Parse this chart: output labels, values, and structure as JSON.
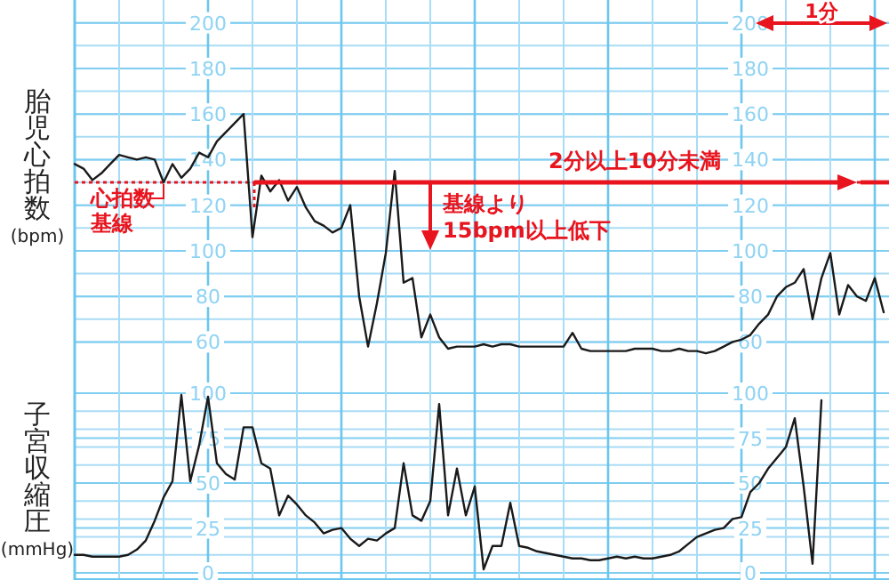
{
  "chart_data": [
    {
      "type": "line",
      "ylabel": "胎児心拍数(bpm)",
      "ylim": [
        50,
        210
      ],
      "yticks": [
        60,
        80,
        100,
        120,
        140,
        160,
        180,
        200
      ],
      "y2lim": [
        50,
        210
      ],
      "y2ticks": [
        60,
        80,
        100,
        120,
        140,
        160,
        180,
        200
      ],
      "grid": true,
      "tick_labels": "y",
      "categories": [
        null,
        null,
        null,
        null,
        null,
        null,
        null,
        null,
        null,
        null,
        null,
        null,
        null,
        null,
        null,
        null,
        null,
        null,
        null,
        null,
        null,
        null,
        null,
        null,
        null,
        null,
        null,
        null,
        null,
        null,
        null,
        null,
        null,
        null,
        null,
        null,
        null,
        null,
        null,
        null,
        null,
        null,
        null,
        null,
        null,
        null,
        null,
        null,
        null,
        null,
        null,
        null,
        null,
        null,
        null,
        null,
        null,
        null,
        null,
        null,
        null,
        null,
        null,
        null,
        null,
        null,
        null,
        null,
        null,
        null,
        null,
        null,
        null,
        null,
        null,
        null,
        null,
        null,
        null,
        null,
        null,
        null,
        null,
        null,
        null,
        null,
        null,
        null,
        null,
        null,
        null,
        null
      ],
      "series": [
        {
          "color": "#1a1a1a",
          "values": [
            138,
            136,
            131,
            134,
            138,
            142,
            141,
            140,
            141,
            140,
            130,
            138,
            132,
            136,
            143,
            141,
            148,
            152,
            156,
            160,
            106,
            133,
            126,
            131,
            122,
            128,
            119,
            113,
            111,
            108,
            110,
            120,
            80,
            58,
            77,
            99,
            135,
            86,
            88,
            62,
            72,
            62,
            57,
            58,
            58,
            58,
            59,
            58,
            59,
            59,
            58,
            58,
            58,
            58,
            58,
            58,
            64,
            57,
            56,
            56,
            56,
            56,
            56,
            57,
            57,
            57,
            56,
            56,
            57,
            56,
            56,
            55,
            56,
            58,
            60,
            61,
            63,
            68,
            72,
            80,
            84,
            86,
            92,
            70,
            88,
            99,
            72,
            85,
            80,
            78,
            88,
            73
          ]
        }
      ],
      "ref_lines": [
        {
          "axis": "y",
          "value": 130,
          "label": "心拍数基線",
          "color": "#e8141e",
          "line_style": "dotted"
        }
      ],
      "annotations": [
        "基線より15bpm以上低下",
        "2分以上10分未満",
        "1分"
      ]
    },
    {
      "type": "line",
      "ylabel": "子宮収縮圧(mmHg)",
      "ylim": [
        0,
        100
      ],
      "yticks": [
        0,
        25,
        50,
        75,
        100
      ],
      "y2lim": [
        0,
        100
      ],
      "y2ticks": [
        0,
        25,
        50,
        75,
        100
      ],
      "grid": true,
      "tick_labels": "y",
      "categories": [
        null,
        null,
        null,
        null,
        null,
        null,
        null,
        null,
        null,
        null,
        null,
        null,
        null,
        null,
        null,
        null,
        null,
        null,
        null,
        null,
        null,
        null,
        null,
        null,
        null,
        null,
        null,
        null,
        null,
        null,
        null,
        null,
        null,
        null,
        null,
        null,
        null,
        null,
        null,
        null,
        null,
        null,
        null,
        null,
        null,
        null,
        null,
        null,
        null,
        null,
        null,
        null,
        null,
        null,
        null,
        null,
        null,
        null,
        null,
        null,
        null,
        null,
        null,
        null,
        null,
        null,
        null,
        null,
        null,
        null,
        null,
        null,
        null,
        null,
        null,
        null,
        null,
        null,
        null,
        null,
        null,
        null,
        null,
        null,
        null,
        null,
        null,
        null,
        null,
        null,
        null,
        null
      ],
      "series": [
        {
          "color": "#1a1a1a",
          "values": [
            10,
            10,
            9,
            9,
            9,
            9,
            10,
            13,
            18,
            29,
            42,
            51,
            99,
            51,
            71,
            98,
            61,
            55,
            52,
            81,
            81,
            61,
            58,
            32,
            43,
            38,
            32,
            28,
            22,
            24,
            25,
            19,
            15,
            19,
            18,
            22,
            25,
            61,
            32,
            29,
            40,
            94,
            32,
            58,
            32,
            48,
            2,
            15,
            15,
            39,
            15,
            14,
            12,
            11,
            10,
            9,
            8,
            8,
            7,
            7,
            8,
            9,
            8,
            9,
            8,
            8,
            9,
            10,
            12,
            16,
            20,
            22,
            24,
            25,
            30,
            31,
            45,
            50,
            58,
            64,
            70,
            86,
            48,
            5,
            96,
            null,
            null,
            null,
            null,
            null,
            null,
            null
          ]
        }
      ]
    }
  ]
}
